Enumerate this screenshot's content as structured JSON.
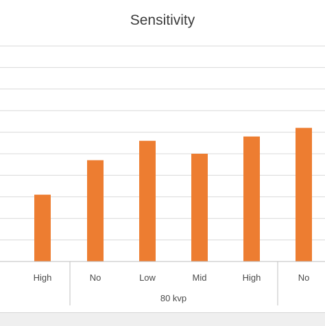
{
  "chart_data": {
    "type": "bar",
    "title": "Sensitivity",
    "xlabel": "",
    "ylabel": "",
    "categories": [
      "High",
      "No",
      "Low",
      "Mid",
      "High",
      "No"
    ],
    "values": [
      3.1,
      4.7,
      5.6,
      5.0,
      5.8,
      6.2
    ],
    "group_label": "80 kvp",
    "ylim": [
      0,
      10
    ],
    "grid": true,
    "bar_color": "#ed7d31",
    "grid_color": "#d9d9d9"
  }
}
